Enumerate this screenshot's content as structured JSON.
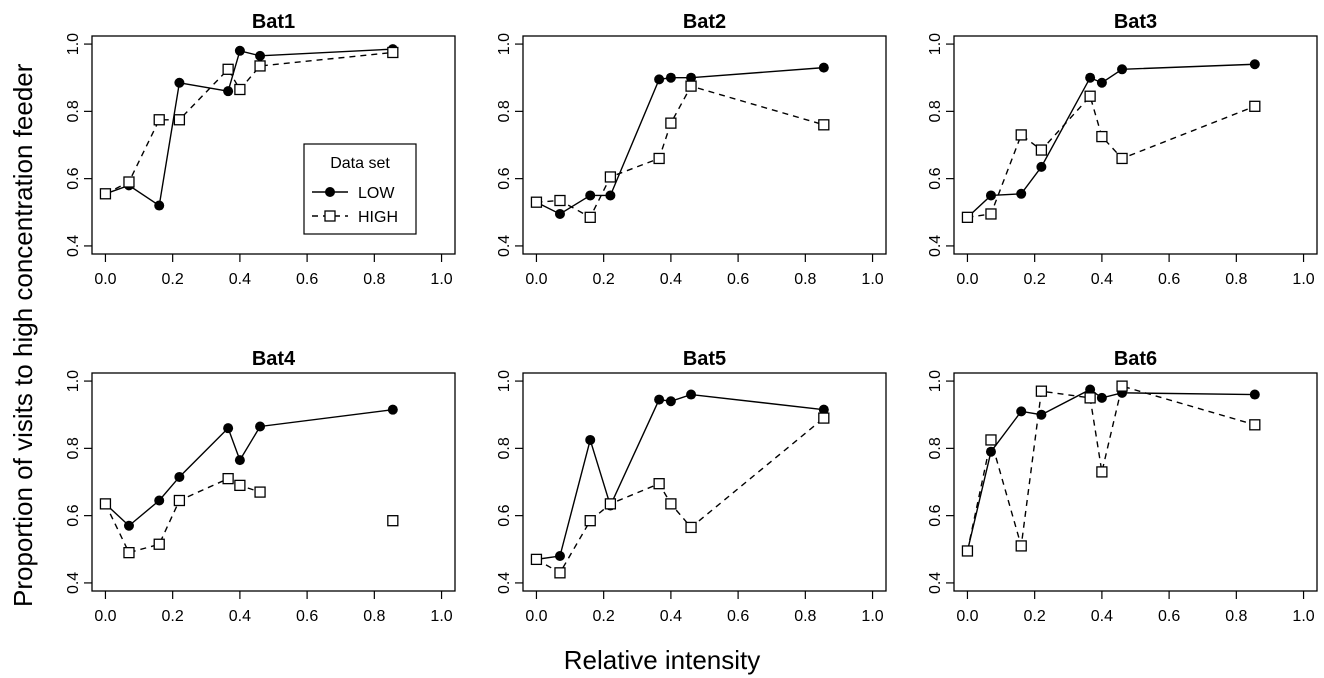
{
  "figure": {
    "ylabel": "Proportion of visits to high concentration feeder",
    "xlabel": "Relative intensity"
  },
  "legend": {
    "title": "Data set",
    "entries": [
      "LOW",
      "HIGH"
    ]
  },
  "chart_data": [
    {
      "type": "line",
      "title": "Bat1",
      "x": [
        0.0,
        0.07,
        0.16,
        0.22,
        0.365,
        0.4,
        0.46,
        0.855
      ],
      "xlim": [
        0,
        1
      ],
      "ylim": [
        0.4,
        1.0
      ],
      "xticks": [
        "0.0",
        "0.2",
        "0.4",
        "0.6",
        "0.8",
        "1.0"
      ],
      "yticks": [
        "0.4",
        "0.6",
        "0.8",
        "1.0"
      ],
      "legend": "center-right",
      "series": [
        {
          "name": "LOW",
          "style": "solid-filled-circle",
          "values": [
            0.555,
            0.58,
            0.52,
            0.885,
            0.86,
            0.98,
            0.965,
            0.985
          ]
        },
        {
          "name": "HIGH",
          "style": "dashed-open-square",
          "values": [
            0.555,
            0.59,
            0.775,
            0.775,
            0.925,
            0.865,
            0.935,
            0.975
          ]
        }
      ]
    },
    {
      "type": "line",
      "title": "Bat2",
      "x": [
        0.0,
        0.07,
        0.16,
        0.22,
        0.365,
        0.4,
        0.46,
        0.855
      ],
      "xlim": [
        0,
        1
      ],
      "ylim": [
        0.4,
        1.0
      ],
      "xticks": [
        "0.0",
        "0.2",
        "0.4",
        "0.6",
        "0.8",
        "1.0"
      ],
      "yticks": [
        "0.4",
        "0.6",
        "0.8",
        "1.0"
      ],
      "series": [
        {
          "name": "LOW",
          "style": "solid-filled-circle",
          "values": [
            0.53,
            0.495,
            0.55,
            0.55,
            0.895,
            0.9,
            0.9,
            0.93
          ]
        },
        {
          "name": "HIGH",
          "style": "dashed-open-square",
          "values": [
            0.53,
            0.535,
            0.485,
            0.605,
            0.66,
            0.765,
            0.875,
            0.76
          ]
        }
      ]
    },
    {
      "type": "line",
      "title": "Bat3",
      "x": [
        0.0,
        0.07,
        0.16,
        0.22,
        0.365,
        0.4,
        0.46,
        0.855
      ],
      "xlim": [
        0,
        1
      ],
      "ylim": [
        0.4,
        1.0
      ],
      "xticks": [
        "0.0",
        "0.2",
        "0.4",
        "0.6",
        "0.8",
        "1.0"
      ],
      "yticks": [
        "0.4",
        "0.6",
        "0.8",
        "1.0"
      ],
      "series": [
        {
          "name": "LOW",
          "style": "solid-filled-circle",
          "values": [
            0.485,
            0.55,
            0.555,
            0.635,
            0.9,
            0.885,
            0.925,
            0.94
          ]
        },
        {
          "name": "HIGH",
          "style": "dashed-open-square",
          "values": [
            0.485,
            0.495,
            0.73,
            0.685,
            0.845,
            0.725,
            0.66,
            0.815
          ]
        }
      ]
    },
    {
      "type": "line",
      "title": "Bat4",
      "x": [
        0.0,
        0.07,
        0.16,
        0.22,
        0.365,
        0.4,
        0.46,
        0.855
      ],
      "xlim": [
        0,
        1
      ],
      "ylim": [
        0.4,
        1.0
      ],
      "xticks": [
        "0.0",
        "0.2",
        "0.4",
        "0.6",
        "0.8",
        "1.0"
      ],
      "yticks": [
        "0.4",
        "0.6",
        "0.8",
        "1.0"
      ],
      "series": [
        {
          "name": "LOW",
          "style": "solid-filled-circle",
          "values": [
            0.635,
            0.57,
            0.645,
            0.715,
            0.86,
            0.765,
            0.865,
            0.915
          ]
        },
        {
          "name": "HIGH",
          "style": "dashed-open-square",
          "values": [
            0.635,
            0.49,
            0.515,
            0.645,
            0.71,
            0.69,
            0.67,
            null
          ],
          "extra_unconnected_point": {
            "x": 0.855,
            "y": 0.585
          }
        }
      ]
    },
    {
      "type": "line",
      "title": "Bat5",
      "x": [
        0.0,
        0.07,
        0.16,
        0.22,
        0.365,
        0.4,
        0.46,
        0.855
      ],
      "xlim": [
        0,
        1
      ],
      "ylim": [
        0.4,
        1.0
      ],
      "xticks": [
        "0.0",
        "0.2",
        "0.4",
        "0.6",
        "0.8",
        "1.0"
      ],
      "yticks": [
        "0.4",
        "0.6",
        "0.8",
        "1.0"
      ],
      "series": [
        {
          "name": "LOW",
          "style": "solid-filled-circle",
          "values": [
            0.47,
            0.48,
            0.825,
            0.63,
            0.945,
            0.94,
            0.96,
            0.915
          ]
        },
        {
          "name": "HIGH",
          "style": "dashed-open-square",
          "values": [
            0.47,
            0.43,
            0.585,
            0.635,
            0.695,
            0.635,
            0.565,
            0.89
          ]
        }
      ]
    },
    {
      "type": "line",
      "title": "Bat6",
      "x": [
        0.0,
        0.07,
        0.16,
        0.22,
        0.365,
        0.4,
        0.46,
        0.855
      ],
      "xlim": [
        0,
        1
      ],
      "ylim": [
        0.4,
        1.0
      ],
      "xticks": [
        "0.0",
        "0.2",
        "0.4",
        "0.6",
        "0.8",
        "1.0"
      ],
      "yticks": [
        "0.4",
        "0.6",
        "0.8",
        "1.0"
      ],
      "series": [
        {
          "name": "LOW",
          "style": "solid-filled-circle",
          "values": [
            0.495,
            0.79,
            0.91,
            0.9,
            0.975,
            0.95,
            0.965,
            0.96
          ]
        },
        {
          "name": "HIGH",
          "style": "dashed-open-square",
          "values": [
            0.495,
            0.825,
            0.51,
            0.97,
            0.95,
            0.73,
            0.985,
            0.87
          ]
        }
      ]
    }
  ]
}
